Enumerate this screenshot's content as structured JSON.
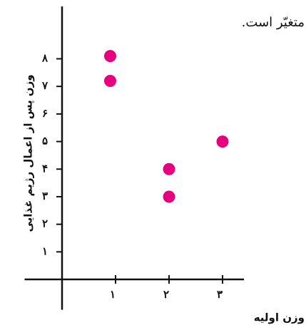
{
  "chart_data": {
    "type": "scatter",
    "annotation": "متغیّر است.",
    "y_label": "وزن پس از اعمال رژیم غذایی",
    "x_label": "وزن اولیه",
    "x": [
      0.9,
      0.9,
      2,
      2,
      3
    ],
    "values": [
      8.1,
      7.2,
      4,
      3,
      5
    ],
    "color": "#e6007e",
    "xlim": [
      -0.7,
      3.4
    ],
    "ylim": [
      -1.1,
      9.9
    ],
    "xticks": [
      {
        "value": 1,
        "label": "۱"
      },
      {
        "value": 2,
        "label": "۲"
      },
      {
        "value": 3,
        "label": "۳"
      }
    ],
    "yticks": [
      {
        "value": 1,
        "label": "۱"
      },
      {
        "value": 2,
        "label": "۲"
      },
      {
        "value": 3,
        "label": "۳"
      },
      {
        "value": 4,
        "label": "۴"
      },
      {
        "value": 5,
        "label": "۵"
      },
      {
        "value": 6,
        "label": "۶"
      },
      {
        "value": 7,
        "label": "۷"
      },
      {
        "value": 8,
        "label": "۸"
      }
    ]
  }
}
